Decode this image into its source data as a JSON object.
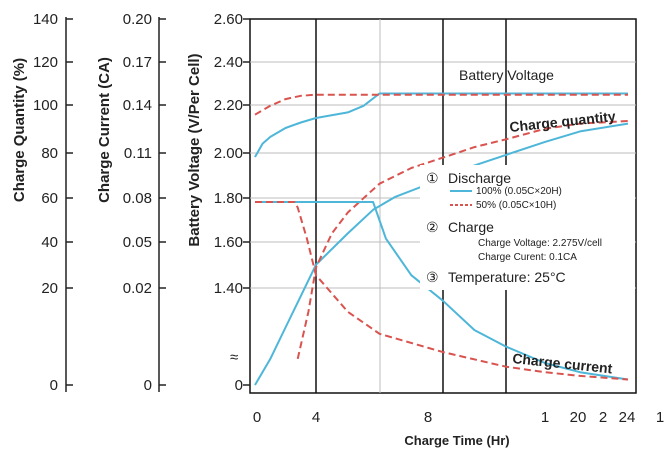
{
  "chart_data": {
    "type": "line",
    "colors": {
      "full_discharge": "#4db6d9",
      "half_discharge": "#d9534f",
      "grid": "#111111"
    },
    "x_axis": {
      "label": "Charge Time (Hr)",
      "tick_labels": [
        "0",
        "4",
        "8",
        "1",
        "20",
        "2",
        "24",
        "1"
      ],
      "major_grid": [
        4,
        8,
        12
      ]
    },
    "y_axes": [
      {
        "label": "Charge Quantity (%)",
        "tick_labels": [
          "140",
          "120",
          "100",
          "80",
          "60",
          "40",
          "20",
          "0"
        ]
      },
      {
        "label": "Charge Current (CA)",
        "tick_labels": [
          "0.20",
          "0.17",
          "0.14",
          "0.11",
          "0.08",
          "0.05",
          "0.02",
          "0"
        ]
      },
      {
        "label": "Battery Voltage (V/Per Cell)",
        "tick_labels": [
          "2.60",
          "2.40",
          "2.20",
          "2.00",
          "1.80",
          "1.60",
          "1.40",
          "0"
        ],
        "range": [
          1.3,
          2.6
        ]
      }
    ],
    "annotations": {
      "battery_voltage": "Battery Voltage",
      "charge_quantity": "Charge quantity",
      "charge_current": "Charge current",
      "discharge_mark": "①",
      "discharge_title": "Discharge",
      "legend_full": "100% (0.05C×20H)",
      "legend_half": "50% (0.05C×10H)",
      "charge_mark": "②",
      "charge_title": "Charge",
      "charge_voltage": "Charge Voltage: 2.275V/cell",
      "charge_current_value": "Charge Curent: 0.1CA",
      "temp_mark": "③",
      "temperature": "Temperature: 25°C",
      "break_mark": "≈"
    },
    "series": [
      {
        "id": "voltage_100",
        "color": "#4db6d9",
        "dash": false,
        "x": [
          0,
          0.5,
          1,
          2,
          3,
          4,
          5,
          5.5,
          6,
          8,
          12,
          16,
          20,
          24
        ],
        "y": [
          1.98,
          2.04,
          2.07,
          2.11,
          2.135,
          2.155,
          2.18,
          2.21,
          2.265,
          2.265,
          2.265,
          2.265,
          2.265,
          2.265
        ]
      },
      {
        "id": "voltage_50",
        "color": "#d9534f",
        "dash": true,
        "x": [
          0,
          0.5,
          1,
          2,
          3,
          4,
          5,
          6,
          8,
          12,
          16,
          20,
          24
        ],
        "y": [
          2.17,
          2.19,
          2.21,
          2.24,
          2.255,
          2.26,
          2.26,
          2.26,
          2.26,
          2.26,
          2.26,
          2.26,
          2.26
        ]
      },
      {
        "id": "quantity_100",
        "color": "#4db6d9",
        "dash": false,
        "x": [
          0,
          1,
          2,
          3,
          4,
          5,
          5.8,
          6.5,
          8,
          10,
          12,
          16,
          20,
          24
        ],
        "y": [
          0,
          10,
          22,
          34,
          46,
          58,
          67,
          72,
          79,
          84,
          88,
          93,
          97,
          100
        ]
      },
      {
        "id": "quantity_50",
        "color": "#d9534f",
        "dash": true,
        "x": [
          2.8,
          3.5,
          4,
          4.5,
          5,
          6,
          7,
          8,
          10,
          12,
          16,
          20,
          24
        ],
        "y": [
          10,
          28,
          45,
          58,
          66,
          77,
          83,
          87,
          91,
          94,
          98,
          100,
          101
        ]
      },
      {
        "id": "current_100",
        "color": "#4db6d9",
        "dash": false,
        "x": [
          0,
          5.8,
          6.2,
          7,
          8,
          10,
          12,
          16,
          20,
          24
        ],
        "y": [
          0.1,
          0.1,
          0.08,
          0.06,
          0.046,
          0.03,
          0.021,
          0.012,
          0.007,
          0.003
        ]
      },
      {
        "id": "current_50",
        "color": "#d9534f",
        "dash": true,
        "x": [
          0,
          2.6,
          2.8,
          3.4,
          4,
          5,
          6,
          8,
          12,
          16,
          20,
          24
        ],
        "y": [
          0.1,
          0.1,
          0.097,
          0.08,
          0.06,
          0.04,
          0.028,
          0.018,
          0.01,
          0.007,
          0.005,
          0.003
        ]
      }
    ]
  }
}
